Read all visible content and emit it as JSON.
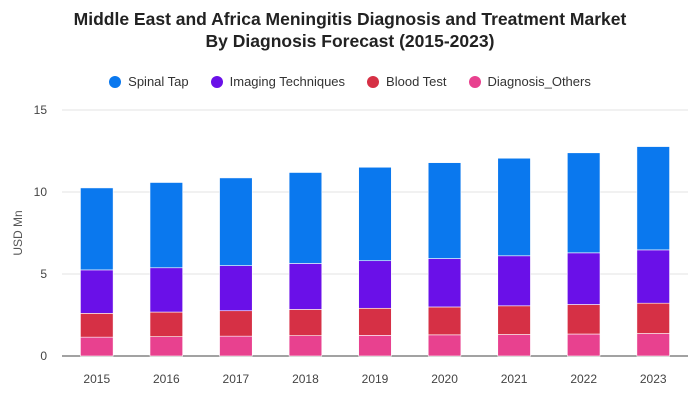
{
  "chart_data": {
    "type": "bar",
    "stacked": true,
    "title_lines": [
      "Middle East and Africa Meningitis Diagnosis and Treatment Market",
      "By Diagnosis Forecast (2015-2023)"
    ],
    "ylabel": "USD Mn",
    "xlabel": "",
    "ylim": [
      0,
      15
    ],
    "yticks": [
      "0",
      "5",
      "10",
      "15"
    ],
    "grid": true,
    "legend_position": "top",
    "categories": [
      "2015",
      "2016",
      "2017",
      "2018",
      "2019",
      "2020",
      "2021",
      "2022",
      "2023"
    ],
    "series": [
      {
        "name": "Diagnosis_Others",
        "color": "#e8418f",
        "values": [
          1.15,
          1.18,
          1.21,
          1.24,
          1.26,
          1.29,
          1.31,
          1.34,
          1.37
        ]
      },
      {
        "name": "Blood Test",
        "color": "#d63045",
        "values": [
          1.45,
          1.5,
          1.55,
          1.6,
          1.65,
          1.7,
          1.75,
          1.8,
          1.85
        ]
      },
      {
        "name": "Imaging Techniques",
        "color": "#6a10e8",
        "values": [
          2.65,
          2.7,
          2.75,
          2.8,
          2.9,
          2.95,
          3.05,
          3.15,
          3.25
        ]
      },
      {
        "name": "Spinal Tap",
        "color": "#0a78ee",
        "values": [
          5.0,
          5.2,
          5.35,
          5.55,
          5.7,
          5.85,
          5.95,
          6.1,
          6.3
        ]
      }
    ],
    "legend_order": [
      "Spinal Tap",
      "Imaging Techniques",
      "Blood Test",
      "Diagnosis_Others"
    ]
  }
}
